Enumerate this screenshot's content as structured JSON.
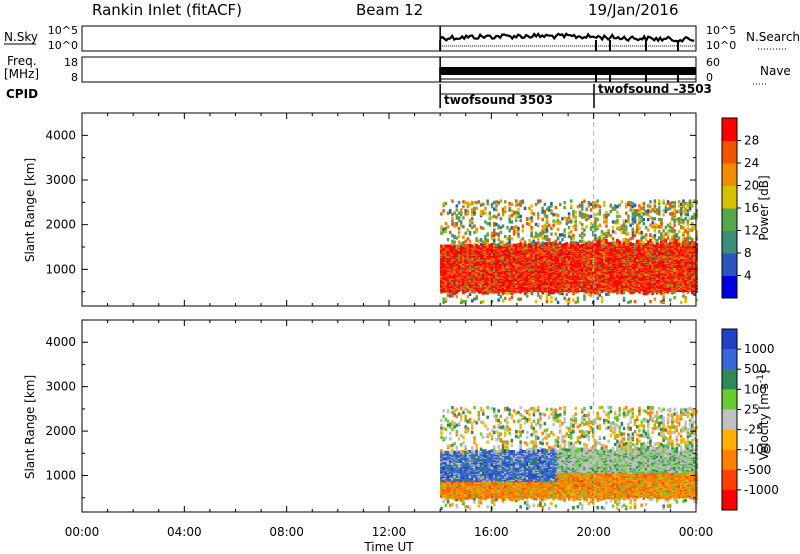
{
  "header": {
    "station": "Rankin Inlet (fitACF)",
    "beam": "Beam 12",
    "date": "19/Jan/2016"
  },
  "strip_labels": {
    "nsky": "N.Sky",
    "freq_line1": "Freq.",
    "freq_line2": "[MHz]",
    "cpid": "CPID",
    "nsearch": "N.Search",
    "nave": "Nave"
  },
  "strip_ticks": {
    "nsky_top": "10^5",
    "nsky_bottom": "10^0",
    "nsearch_top": "10^5",
    "nsearch_bottom": "10^0",
    "freq_top": "18",
    "freq_bottom": "8",
    "nave_top": "60",
    "nave_bottom": "0"
  },
  "cpid_labels": [
    "twofsound 3503",
    "twofsound -3503"
  ],
  "chart_data": [
    {
      "type": "heatmap",
      "panel": "power",
      "x_unit": "Time UT",
      "ylabel": "Slant Range [km]",
      "xlim_hours": [
        0,
        24
      ],
      "ylim_km": [
        180,
        4500
      ],
      "yticks": [
        1000,
        2000,
        3000,
        4000
      ],
      "colorbar": {
        "label": "Power [dB]",
        "range": [
          0,
          32
        ],
        "ticks": [
          "4",
          "8",
          "12",
          "16",
          "20",
          "24",
          "28"
        ],
        "colors": [
          "#0000e0",
          "#2a55bf",
          "#3b8f7a",
          "#56a64a",
          "#d7c200",
          "#f08c00",
          "#f25500",
          "#ff0000"
        ]
      },
      "data_coverage": {
        "start_hour": 14.0,
        "end_hour": 24.0,
        "main_band_km": [
          500,
          1500
        ],
        "scattered_echoes_km": [
          1500,
          2500
        ]
      }
    },
    {
      "type": "heatmap",
      "panel": "velocity",
      "x_unit": "Time UT",
      "ylabel": "Slant Range [km]",
      "xlim_hours": [
        0,
        24
      ],
      "ylim_km": [
        180,
        4500
      ],
      "yticks": [
        1000,
        2000,
        3000,
        4000
      ],
      "colorbar": {
        "label": "Velocity [m s^-1]",
        "ticks": [
          "1000",
          "500",
          "100",
          "25",
          "-25",
          "-100",
          "-500",
          "-1000"
        ],
        "colors": [
          "#2040c8",
          "#3868d8",
          "#2e8b57",
          "#66cc33",
          "#c0c0c0",
          "#ffb000",
          "#ff8000",
          "#ff4000",
          "#ff0000"
        ]
      },
      "data_coverage": {
        "start_hour": 14.0,
        "end_hour": 24.0,
        "main_band_km": [
          500,
          1500
        ]
      }
    }
  ],
  "xaxis": {
    "ticks": [
      "00:00",
      "04:00",
      "08:00",
      "12:00",
      "16:00",
      "20:00",
      "00:00"
    ],
    "label": "Time UT"
  }
}
